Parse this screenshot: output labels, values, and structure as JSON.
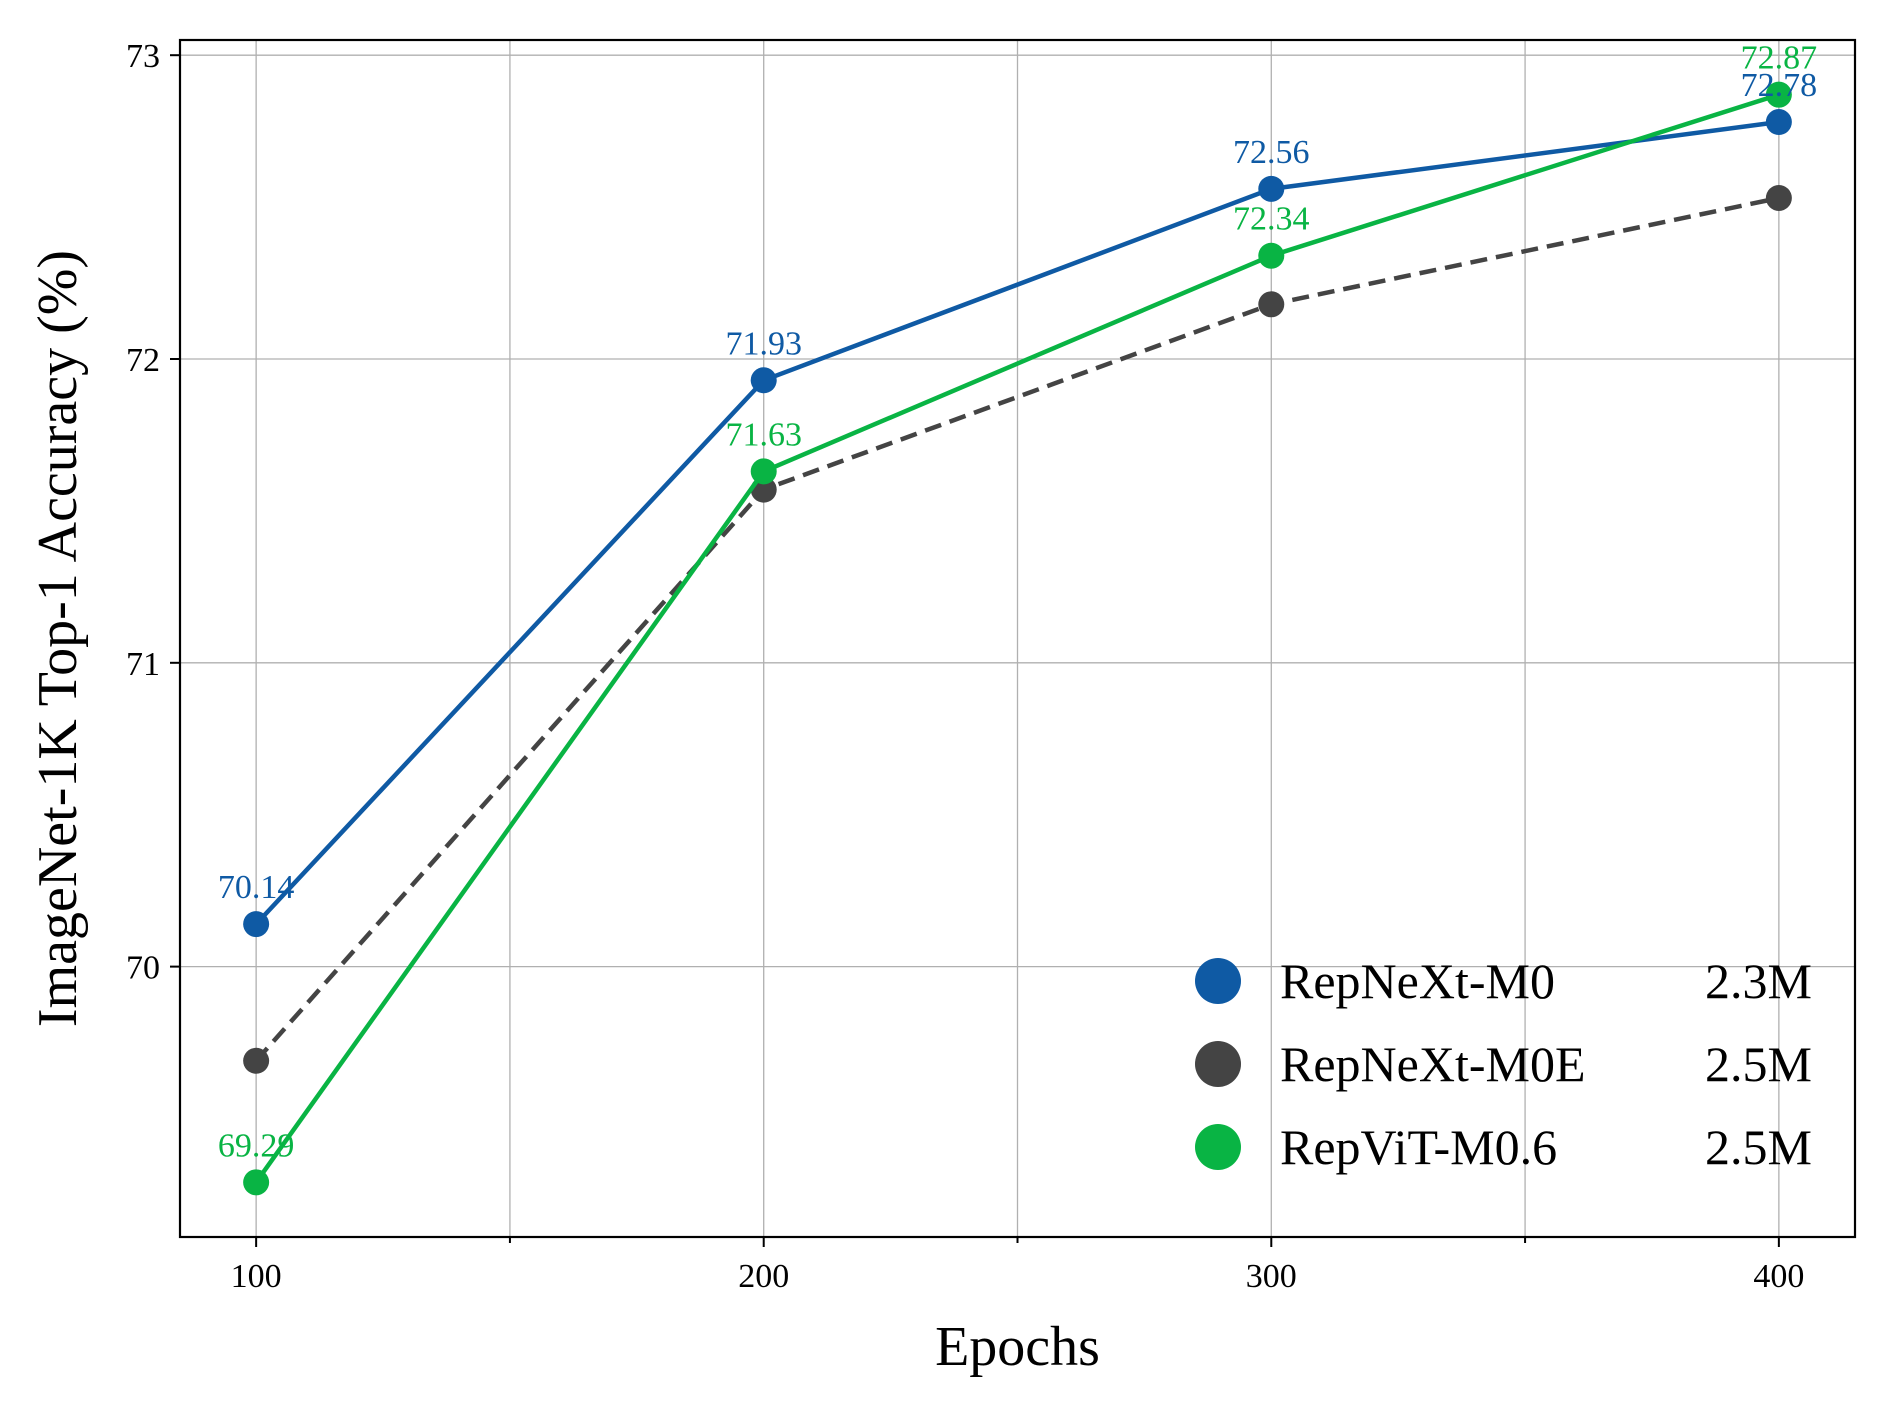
{
  "chart_data": {
    "type": "line",
    "title": "",
    "xlabel": "Epochs",
    "ylabel": "ImageNet-1K Top-1 Accuracy (%)",
    "x": [
      100,
      200,
      300,
      400
    ],
    "xticks": [
      "100",
      "200",
      "300",
      "400"
    ],
    "yticks": [
      "70",
      "71",
      "72",
      "73"
    ],
    "xlim": [
      85,
      415
    ],
    "ylim": [
      69.11,
      73.05
    ],
    "grid": true,
    "legend_position": "lower-right",
    "series": [
      {
        "name": "RepNeXt-M0",
        "params": "2.3M",
        "color": "#0f5aa4",
        "dashed": false,
        "values": [
          70.14,
          71.93,
          72.56,
          72.78
        ],
        "labels": [
          "70.14",
          "71.93",
          "72.56",
          "72.78"
        ],
        "show_labels": true
      },
      {
        "name": "RepNeXt-M0E",
        "params": "2.5M",
        "color": "#444444",
        "dashed": true,
        "values": [
          69.69,
          71.57,
          72.18,
          72.53
        ],
        "labels": [],
        "show_labels": false
      },
      {
        "name": "RepViT-M0.6",
        "params": "2.5M",
        "color": "#09b444",
        "dashed": false,
        "values": [
          69.29,
          71.63,
          72.34,
          72.87
        ],
        "labels": [
          "69.29",
          "71.63",
          "72.34",
          "72.87"
        ],
        "show_labels": true
      }
    ]
  }
}
